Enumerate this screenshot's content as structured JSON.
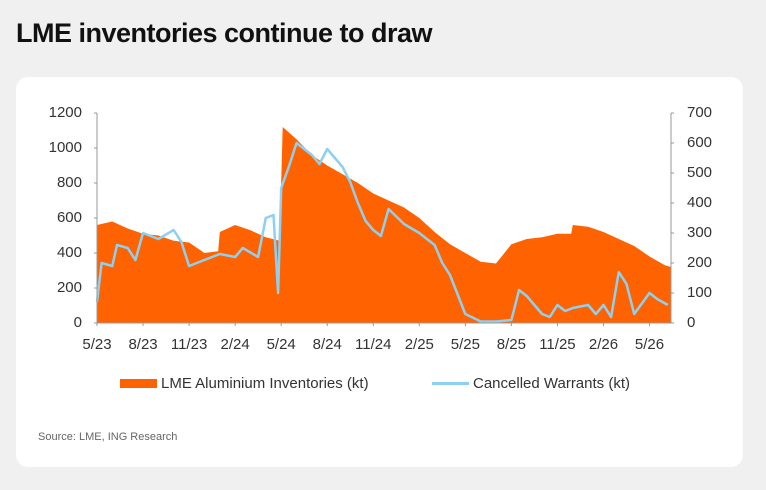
{
  "chart_data": {
    "type": "area-line",
    "title": "LME inventories continue to draw",
    "source": "Source: LME, ING Research",
    "xlim": [
      0,
      37.4
    ],
    "xticks": [
      {
        "value": 0,
        "label": "5/23"
      },
      {
        "value": 3,
        "label": "8/23"
      },
      {
        "value": 6,
        "label": "11/23"
      },
      {
        "value": 9,
        "label": "2/24"
      },
      {
        "value": 12,
        "label": "5/24"
      },
      {
        "value": 15,
        "label": "8/24"
      },
      {
        "value": 18,
        "label": "11/24"
      },
      {
        "value": 21,
        "label": "2/25"
      },
      {
        "value": 24,
        "label": "5/25"
      },
      {
        "value": 27,
        "label": "8/25"
      },
      {
        "value": 30,
        "label": "11/25"
      },
      {
        "value": 33,
        "label": "2/26"
      },
      {
        "value": 36,
        "label": "5/26"
      }
    ],
    "ylim": [
      0,
      1200
    ],
    "yticks": [
      0,
      200,
      400,
      600,
      800,
      1000,
      1200
    ],
    "y2lim": [
      0,
      700
    ],
    "y2ticks": [
      0,
      100,
      200,
      300,
      400,
      500,
      600,
      700
    ],
    "series": [
      {
        "name": "LME Aluminium Inventories (kt)",
        "color": "#ff6200",
        "kind": "area",
        "x": [
          0,
          1,
          2,
          3,
          4,
          5,
          6,
          7,
          7.9,
          8,
          9,
          10,
          11,
          11.9,
          12.1,
          13,
          14,
          15,
          16,
          17,
          18,
          19,
          20,
          21,
          22,
          23,
          24,
          25,
          26,
          27,
          28,
          29,
          30,
          30.9,
          31,
          32,
          33,
          34,
          35,
          36,
          37,
          37.4
        ],
        "values": [
          560,
          580,
          540,
          510,
          500,
          470,
          460,
          400,
          410,
          520,
          560,
          530,
          490,
          470,
          1120,
          1050,
          960,
          900,
          850,
          800,
          740,
          700,
          660,
          600,
          520,
          450,
          400,
          350,
          340,
          450,
          480,
          490,
          510,
          510,
          560,
          550,
          520,
          480,
          440,
          380,
          330,
          320
        ]
      },
      {
        "name": "Cancelled Warrants (kt)",
        "color": "#8ed0ef",
        "kind": "line",
        "axis": "y2",
        "x": [
          0,
          0.3,
          1,
          1.3,
          2,
          2.5,
          3,
          4,
          5,
          5.5,
          6,
          7,
          8,
          9,
          9.5,
          10.5,
          11,
          11.5,
          11.8,
          12,
          12.5,
          13,
          14,
          14.5,
          15,
          16,
          16.5,
          17,
          17.5,
          18,
          18.5,
          19,
          20,
          21,
          22,
          22.5,
          23,
          24,
          25,
          26,
          27,
          27.5,
          28,
          29,
          29.5,
          30,
          30.5,
          31,
          32,
          32.5,
          33,
          33.5,
          34,
          34.5,
          35,
          36,
          36.5,
          37.2
        ],
        "values": [
          70,
          200,
          190,
          260,
          250,
          210,
          300,
          280,
          310,
          270,
          190,
          210,
          230,
          220,
          250,
          220,
          350,
          360,
          100,
          450,
          520,
          600,
          560,
          530,
          580,
          520,
          470,
          400,
          340,
          310,
          290,
          380,
          330,
          300,
          260,
          200,
          160,
          30,
          5,
          5,
          10,
          110,
          90,
          30,
          20,
          60,
          40,
          50,
          60,
          30,
          60,
          20,
          170,
          130,
          30,
          100,
          80,
          60
        ]
      }
    ]
  }
}
